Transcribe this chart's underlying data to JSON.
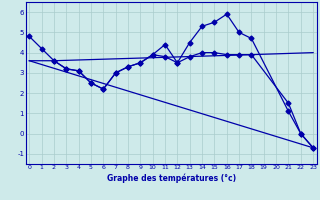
{
  "bg_color": "#ceeaea",
  "line_color": "#0000aa",
  "grid_color": "#aacccc",
  "xlabel": "Graphe des températures (°c)",
  "ylim": [
    -1.5,
    6.5
  ],
  "xlim": [
    -0.3,
    23.3
  ],
  "yticks": [
    -1,
    0,
    1,
    2,
    3,
    4,
    5,
    6
  ],
  "xticks": [
    0,
    1,
    2,
    3,
    4,
    5,
    6,
    7,
    8,
    9,
    10,
    11,
    12,
    13,
    14,
    15,
    16,
    17,
    18,
    19,
    20,
    21,
    22,
    23
  ],
  "curve1_x": [
    0,
    1,
    2,
    3,
    4,
    5,
    6,
    7,
    8,
    9,
    10,
    11,
    12,
    13,
    14,
    15,
    16,
    17,
    18,
    21,
    22,
    23
  ],
  "curve1_y": [
    4.8,
    4.2,
    3.6,
    3.2,
    3.1,
    2.5,
    2.2,
    3.0,
    3.3,
    3.5,
    3.9,
    4.4,
    3.5,
    4.5,
    5.3,
    5.5,
    5.9,
    5.0,
    4.7,
    1.1,
    0.0,
    -0.7
  ],
  "curve2_x": [
    0,
    2,
    18,
    23
  ],
  "curve2_y": [
    3.6,
    3.6,
    3.9,
    4.0
  ],
  "curve3_x": [
    0,
    23
  ],
  "curve3_y": [
    3.6,
    -0.7
  ],
  "curve4_x": [
    2,
    3,
    4,
    5,
    6,
    7,
    8,
    9,
    10,
    11,
    12,
    13,
    14,
    15,
    16,
    17,
    18,
    21,
    22,
    23
  ],
  "curve4_y": [
    3.6,
    3.2,
    3.1,
    2.5,
    2.2,
    3.0,
    3.3,
    3.5,
    3.9,
    3.8,
    3.5,
    3.8,
    4.0,
    4.0,
    3.9,
    3.9,
    3.9,
    1.5,
    0.0,
    -0.7
  ],
  "marker": "D",
  "markersize": 2.5,
  "linewidth": 0.9
}
